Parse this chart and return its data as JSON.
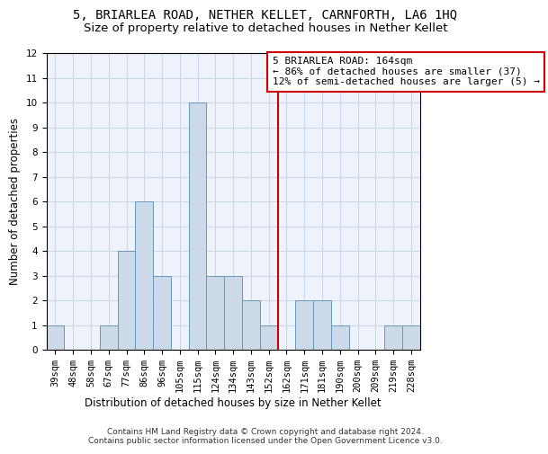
{
  "title1": "5, BRIARLEA ROAD, NETHER KELLET, CARNFORTH, LA6 1HQ",
  "title2": "Size of property relative to detached houses in Nether Kellet",
  "xlabel": "Distribution of detached houses by size in Nether Kellet",
  "ylabel": "Number of detached properties",
  "categories": [
    "39sqm",
    "48sqm",
    "58sqm",
    "67sqm",
    "77sqm",
    "86sqm",
    "96sqm",
    "105sqm",
    "115sqm",
    "124sqm",
    "134sqm",
    "143sqm",
    "152sqm",
    "162sqm",
    "171sqm",
    "181sqm",
    "190sqm",
    "200sqm",
    "209sqm",
    "219sqm",
    "228sqm"
  ],
  "values": [
    1,
    0,
    0,
    1,
    4,
    6,
    3,
    0,
    10,
    3,
    3,
    2,
    1,
    0,
    2,
    2,
    1,
    0,
    0,
    1,
    1
  ],
  "bar_color": "#ccd9e8",
  "bar_edge_color": "#6699bb",
  "highlight_index": 13,
  "highlight_color": "#cc0000",
  "annotation_text": "5 BRIARLEA ROAD: 164sqm\n← 86% of detached houses are smaller (37)\n12% of semi-detached houses are larger (5) →",
  "annotation_box_color": "#cc0000",
  "ylim": [
    0,
    12
  ],
  "yticks": [
    0,
    1,
    2,
    3,
    4,
    5,
    6,
    7,
    8,
    9,
    10,
    11,
    12
  ],
  "grid_color": "#c8d4e8",
  "background_color": "#eef2fb",
  "footer": "Contains HM Land Registry data © Crown copyright and database right 2024.\nContains public sector information licensed under the Open Government Licence v3.0.",
  "title1_fontsize": 10,
  "title2_fontsize": 9.5,
  "xlabel_fontsize": 8.5,
  "ylabel_fontsize": 8.5,
  "tick_fontsize": 7.5,
  "annotation_fontsize": 8,
  "footer_fontsize": 6.5
}
